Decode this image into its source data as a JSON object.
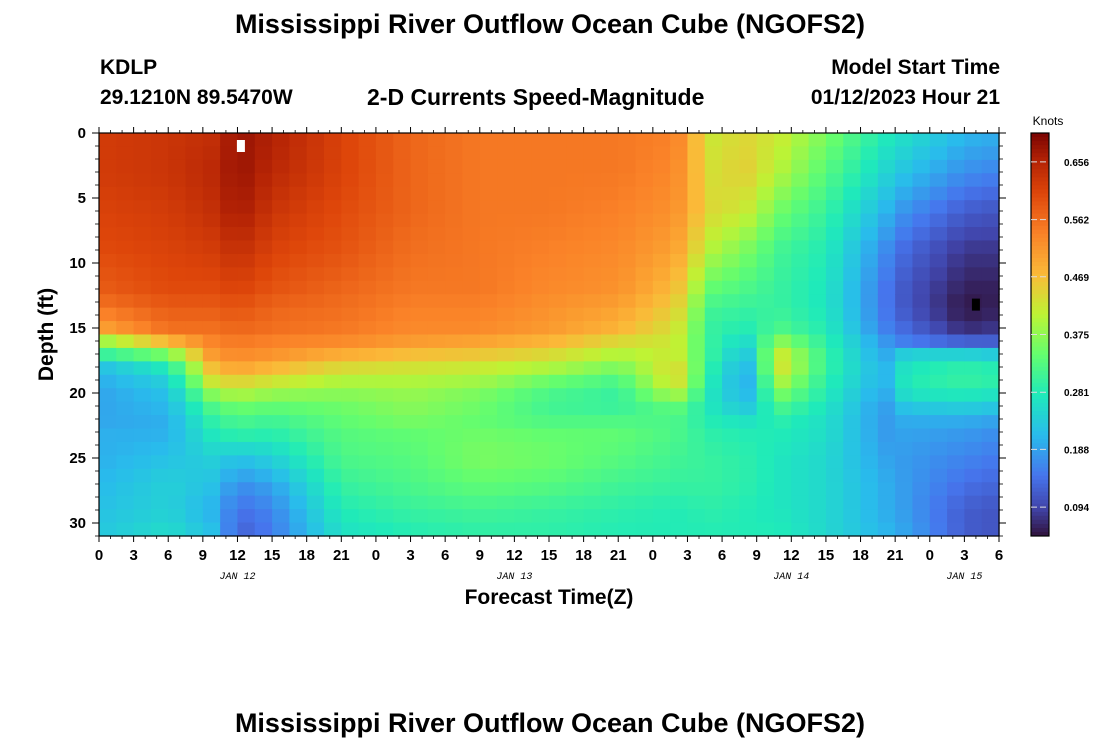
{
  "page": {
    "title": "Mississippi River Outflow Ocean Cube (NGOFS2)",
    "station": "KDLP",
    "coordinates": "29.1210N  89.5470W",
    "subtitle": "2-D Currents Speed-Magnitude",
    "model_start_label": "Model Start Time",
    "model_start_value": "01/12/2023 Hour 21",
    "bottom_title": "Mississippi River Outflow Ocean Cube (NGOFS2)"
  },
  "chart_data": {
    "type": "heatmap",
    "title": "2-D Currents Speed-Magnitude",
    "xlabel": "Forecast Time(Z)",
    "ylabel": "Depth (ft)",
    "x_unit": "hours since 01/12 00Z",
    "xlim": [
      0,
      78
    ],
    "ylim": [
      31,
      0
    ],
    "x_tick_labels": [
      "0",
      "3",
      "6",
      "9",
      "12",
      "15",
      "18",
      "21",
      "0",
      "3",
      "6",
      "9",
      "12",
      "15",
      "18",
      "21",
      "0",
      "3",
      "6",
      "9",
      "12",
      "15",
      "18",
      "21",
      "0",
      "3",
      "6"
    ],
    "y_ticks": [
      0,
      5,
      10,
      15,
      20,
      25,
      30
    ],
    "date_labels": [
      {
        "label": "JAN 12",
        "hour": 12
      },
      {
        "label": "JAN 13",
        "hour": 36
      },
      {
        "label": "JAN 14",
        "hour": 60
      },
      {
        "label": "JAN 15",
        "hour": 75
      }
    ],
    "colorbar": {
      "unit": "Knots",
      "min": 0.047,
      "max": 0.703,
      "tick_values": [
        0.656,
        0.562,
        0.469,
        0.375,
        0.281,
        0.188,
        0.094
      ],
      "tick_labels": [
        "0.656",
        "0.562",
        "0.469",
        "0.375",
        "0.281",
        "0.188",
        "0.094"
      ]
    },
    "grid": {
      "nx": 53,
      "ny": 30,
      "hour_step": 1.5,
      "depth_step": 1.0333,
      "depths_ft": [
        0,
        3,
        6,
        9,
        12,
        13.5,
        15,
        16,
        17,
        18,
        19,
        20,
        21,
        22,
        23,
        25,
        27,
        29,
        31
      ],
      "profiles": [
        {
          "hour": 0,
          "values": [
            0.62,
            0.62,
            0.61,
            0.6,
            0.58,
            0.55,
            0.5,
            0.38,
            0.3,
            0.22,
            0.2,
            0.19,
            0.19,
            0.19,
            0.2,
            0.2,
            0.21,
            0.22,
            0.23
          ]
        },
        {
          "hour": 6,
          "values": [
            0.63,
            0.63,
            0.62,
            0.61,
            0.6,
            0.58,
            0.56,
            0.48,
            0.36,
            0.28,
            0.24,
            0.22,
            0.21,
            0.2,
            0.2,
            0.22,
            0.24,
            0.24,
            0.26
          ]
        },
        {
          "hour": 10,
          "values": [
            0.64,
            0.65,
            0.64,
            0.62,
            0.6,
            0.58,
            0.56,
            0.54,
            0.52,
            0.48,
            0.44,
            0.38,
            0.33,
            0.3,
            0.28,
            0.24,
            0.22,
            0.2,
            0.22
          ]
        },
        {
          "hour": 12,
          "values": [
            0.68,
            0.68,
            0.67,
            0.64,
            0.61,
            0.59,
            0.57,
            0.55,
            0.53,
            0.5,
            0.45,
            0.4,
            0.35,
            0.32,
            0.3,
            0.22,
            0.17,
            0.14,
            0.12
          ]
        },
        {
          "hour": 15,
          "values": [
            0.66,
            0.65,
            0.63,
            0.61,
            0.59,
            0.57,
            0.56,
            0.54,
            0.52,
            0.48,
            0.43,
            0.38,
            0.34,
            0.31,
            0.29,
            0.24,
            0.19,
            0.16,
            0.15
          ]
        },
        {
          "hour": 21,
          "values": [
            0.61,
            0.61,
            0.6,
            0.59,
            0.57,
            0.56,
            0.55,
            0.53,
            0.49,
            0.44,
            0.4,
            0.37,
            0.35,
            0.34,
            0.33,
            0.32,
            0.3,
            0.28,
            0.26
          ]
        },
        {
          "hour": 27,
          "values": [
            0.57,
            0.57,
            0.57,
            0.56,
            0.55,
            0.54,
            0.53,
            0.51,
            0.47,
            0.43,
            0.4,
            0.38,
            0.37,
            0.36,
            0.34,
            0.33,
            0.32,
            0.3,
            0.28
          ]
        },
        {
          "hour": 33,
          "values": [
            0.55,
            0.55,
            0.55,
            0.55,
            0.55,
            0.54,
            0.53,
            0.5,
            0.46,
            0.42,
            0.39,
            0.36,
            0.35,
            0.34,
            0.35,
            0.36,
            0.34,
            0.31,
            0.29
          ]
        },
        {
          "hour": 39,
          "values": [
            0.55,
            0.55,
            0.55,
            0.54,
            0.53,
            0.52,
            0.51,
            0.48,
            0.44,
            0.4,
            0.35,
            0.32,
            0.31,
            0.32,
            0.34,
            0.35,
            0.33,
            0.3,
            0.29
          ]
        },
        {
          "hour": 45,
          "values": [
            0.55,
            0.55,
            0.54,
            0.53,
            0.52,
            0.5,
            0.48,
            0.44,
            0.4,
            0.36,
            0.32,
            0.3,
            0.3,
            0.32,
            0.34,
            0.33,
            0.31,
            0.29,
            0.28
          ]
        },
        {
          "hour": 50,
          "values": [
            0.54,
            0.53,
            0.52,
            0.5,
            0.47,
            0.45,
            0.43,
            0.42,
            0.42,
            0.44,
            0.44,
            0.4,
            0.34,
            0.32,
            0.32,
            0.31,
            0.3,
            0.28,
            0.28
          ]
        },
        {
          "hour": 53,
          "values": [
            0.42,
            0.43,
            0.44,
            0.4,
            0.34,
            0.31,
            0.3,
            0.3,
            0.3,
            0.29,
            0.28,
            0.27,
            0.27,
            0.28,
            0.29,
            0.3,
            0.3,
            0.29,
            0.28
          ]
        },
        {
          "hour": 56,
          "values": [
            0.44,
            0.45,
            0.42,
            0.36,
            0.32,
            0.3,
            0.28,
            0.25,
            0.22,
            0.2,
            0.19,
            0.2,
            0.22,
            0.26,
            0.28,
            0.29,
            0.29,
            0.28,
            0.28
          ]
        },
        {
          "hour": 59,
          "values": [
            0.42,
            0.4,
            0.35,
            0.31,
            0.3,
            0.3,
            0.32,
            0.37,
            0.42,
            0.43,
            0.4,
            0.36,
            0.32,
            0.29,
            0.28,
            0.27,
            0.27,
            0.27,
            0.28
          ]
        },
        {
          "hour": 63,
          "values": [
            0.36,
            0.33,
            0.3,
            0.28,
            0.27,
            0.27,
            0.28,
            0.29,
            0.3,
            0.3,
            0.29,
            0.28,
            0.27,
            0.26,
            0.26,
            0.25,
            0.25,
            0.25,
            0.25
          ]
        },
        {
          "hour": 68,
          "values": [
            0.28,
            0.25,
            0.21,
            0.17,
            0.15,
            0.15,
            0.16,
            0.18,
            0.19,
            0.2,
            0.2,
            0.19,
            0.18,
            0.18,
            0.18,
            0.19,
            0.2,
            0.2,
            0.21
          ]
        },
        {
          "hour": 70,
          "values": [
            0.26,
            0.22,
            0.17,
            0.13,
            0.11,
            0.11,
            0.13,
            0.15,
            0.24,
            0.27,
            0.28,
            0.27,
            0.23,
            0.2,
            0.19,
            0.18,
            0.18,
            0.18,
            0.19
          ]
        },
        {
          "hour": 75,
          "values": [
            0.21,
            0.17,
            0.12,
            0.08,
            0.06,
            0.05,
            0.07,
            0.12,
            0.24,
            0.29,
            0.3,
            0.28,
            0.24,
            0.2,
            0.18,
            0.16,
            0.14,
            0.12,
            0.12
          ]
        },
        {
          "hour": 78,
          "values": [
            0.2,
            0.16,
            0.11,
            0.08,
            0.06,
            0.06,
            0.08,
            0.12,
            0.23,
            0.28,
            0.29,
            0.27,
            0.23,
            0.19,
            0.17,
            0.15,
            0.13,
            0.11,
            0.11
          ]
        }
      ]
    },
    "markers": [
      {
        "name": "max-marker",
        "hour": 12.3,
        "depth": 1.0,
        "color": "#ffffff"
      },
      {
        "name": "min-marker",
        "hour": 76.0,
        "depth": 13.2,
        "color": "#000000"
      }
    ]
  }
}
